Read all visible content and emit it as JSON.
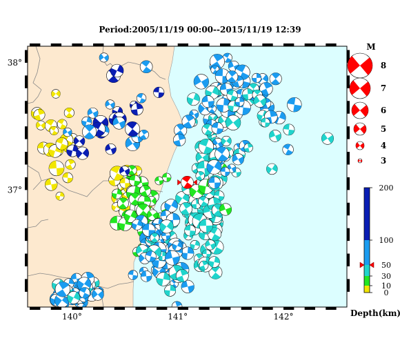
{
  "title": "Period:2005/11/19 00:00--2015/11/19 12:39",
  "colors": {
    "land": "#fde9cf",
    "sea": "#dcfeff",
    "border": "#000000",
    "highlight": "#ff0000"
  },
  "axes": {
    "lat_ticks": [
      {
        "value": 38,
        "label": "38°"
      },
      {
        "value": 37,
        "label": "37°"
      }
    ],
    "lon_ticks": [
      {
        "value": 140,
        "label": "140°"
      },
      {
        "value": 141,
        "label": "141°"
      },
      {
        "value": 142,
        "label": "142°"
      }
    ],
    "lon_range": [
      139.58,
      142.6
    ],
    "lat_range": [
      36.08,
      38.13
    ]
  },
  "magnitude_legend": {
    "title": "M",
    "entries": [
      {
        "mag": 8,
        "label": "8"
      },
      {
        "mag": 7,
        "label": "7"
      },
      {
        "mag": 6,
        "label": "6"
      },
      {
        "mag": 5,
        "label": "5"
      },
      {
        "mag": 4,
        "label": "4"
      },
      {
        "mag": 3,
        "label": "3"
      }
    ]
  },
  "depth_legend": {
    "title": "Depth(km)",
    "range": [
      0,
      200
    ],
    "ticks": [
      {
        "value": 200,
        "label": "200"
      },
      {
        "value": 100,
        "label": "100"
      },
      {
        "value": 50,
        "label": "50"
      },
      {
        "value": 30,
        "label": "30"
      },
      {
        "value": 10,
        "label": "10"
      },
      {
        "value": 0,
        "label": "0"
      }
    ],
    "segments": [
      {
        "from": 0,
        "to": 10,
        "color": "#f2e600"
      },
      {
        "from": 10,
        "to": 30,
        "color": "#22e622"
      },
      {
        "from": 30,
        "to": 50,
        "color": "#20d4cc"
      },
      {
        "from": 50,
        "to": 100,
        "color": "#1b9cf0"
      },
      {
        "from": 100,
        "to": 200,
        "color": "#0a1eb4"
      }
    ],
    "marker_depth": 50
  },
  "highlight_event": {
    "lon": 141.09,
    "lat": 37.06,
    "mag": 7
  }
}
